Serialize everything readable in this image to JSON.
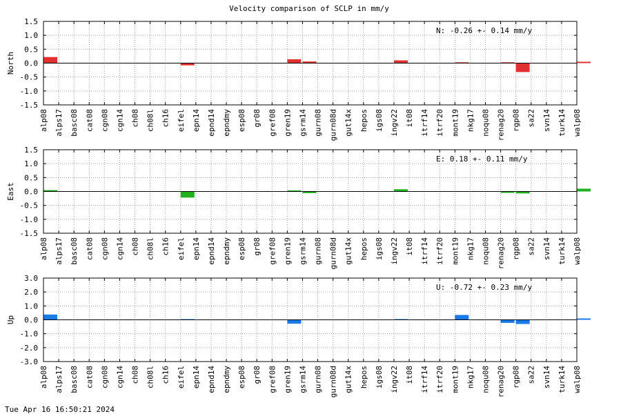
{
  "chart_data": [
    {
      "type": "bar",
      "title": "Velocity comparison of SCLP in mm/y",
      "ylabel": "North",
      "ylim": [
        -1.5,
        1.5
      ],
      "yticks": [
        "1.5",
        "1.0",
        "0.5",
        "0.0",
        "-0.5",
        "-1.0",
        "-1.5"
      ],
      "grid": true,
      "color": "#e03030",
      "annotation": "N:  -0.26 +-  0.14 mm/y",
      "categories": [
        "alp08",
        "alps17",
        "basc08",
        "cat08",
        "cgn08",
        "cgn14",
        "ch08",
        "ch08l",
        "ch16",
        "eifel",
        "epn14",
        "epnd14",
        "epndmy",
        "esp08",
        "gr08",
        "gref08",
        "gren19",
        "gsrm14",
        "gurn08",
        "gurn08d",
        "gut14x",
        "hepos",
        "igs08",
        "ingv22",
        "it08",
        "itrf14",
        "itrf20",
        "mont19",
        "nkg17",
        "noqu08",
        "renag20",
        "rgp08",
        "sa22",
        "svn14",
        "turk14",
        "walp08"
      ],
      "values": [
        0.22,
        0,
        0,
        0,
        0,
        0,
        0,
        0,
        0,
        -0.08,
        0,
        0,
        0,
        0,
        0,
        0,
        0.14,
        0.06,
        0,
        0,
        0,
        0,
        0,
        0.1,
        0,
        0,
        0,
        0.03,
        0,
        0,
        0.03,
        -0.32,
        0,
        0,
        0,
        0.05
      ]
    },
    {
      "type": "bar",
      "ylabel": "East",
      "ylim": [
        -1.5,
        1.5
      ],
      "yticks": [
        "1.5",
        "1.0",
        "0.5",
        "0.0",
        "-0.5",
        "-1.0",
        "-1.5"
      ],
      "grid": true,
      "color": "#20b020",
      "annotation": "E:   0.18 +-  0.11 mm/y",
      "categories": [
        "alp08",
        "alps17",
        "basc08",
        "cat08",
        "cgn08",
        "cgn14",
        "ch08",
        "ch08l",
        "ch16",
        "eifel",
        "epn14",
        "epnd14",
        "epndmy",
        "esp08",
        "gr08",
        "gref08",
        "gren19",
        "gsrm14",
        "gurn08",
        "gurn08d",
        "gut14x",
        "hepos",
        "igs08",
        "ingv22",
        "it08",
        "itrf14",
        "itrf20",
        "mont19",
        "nkg17",
        "noqu08",
        "renag20",
        "rgp08",
        "sa22",
        "svn14",
        "turk14",
        "walp08"
      ],
      "values": [
        0.05,
        0,
        0,
        0,
        0,
        0,
        0,
        0,
        0,
        -0.22,
        0,
        0,
        0,
        0,
        0,
        0,
        0.04,
        -0.06,
        0,
        0,
        0,
        0,
        0,
        0.08,
        0,
        0,
        0,
        0,
        0,
        0,
        -0.05,
        -0.07,
        0,
        0,
        0,
        0.1
      ]
    },
    {
      "type": "bar",
      "ylabel": "Up",
      "ylim": [
        -3.0,
        3.0
      ],
      "yticks": [
        "3.0",
        "2.0",
        "1.0",
        "0.0",
        "-1.0",
        "-2.0",
        "-3.0"
      ],
      "grid": true,
      "color": "#1a7ae8",
      "annotation": "U:  -0.72 +-  0.23 mm/y",
      "categories": [
        "alp08",
        "alps17",
        "basc08",
        "cat08",
        "cgn08",
        "cgn14",
        "ch08",
        "ch08l",
        "ch16",
        "eifel",
        "epn14",
        "epnd14",
        "epndmy",
        "esp08",
        "gr08",
        "gref08",
        "gren19",
        "gsrm14",
        "gurn08",
        "gurn08d",
        "gut14x",
        "hepos",
        "igs08",
        "ingv22",
        "it08",
        "itrf14",
        "itrf20",
        "mont19",
        "nkg17",
        "noqu08",
        "renag20",
        "rgp08",
        "sa22",
        "svn14",
        "turk14",
        "walp08"
      ],
      "values": [
        0.38,
        0,
        0,
        0,
        0,
        0,
        0,
        0,
        0,
        0.05,
        0,
        0,
        0,
        0,
        0,
        0,
        -0.28,
        0,
        0,
        0,
        0,
        0,
        0,
        0.05,
        0,
        0,
        0,
        0.35,
        0,
        0,
        -0.22,
        -0.3,
        0,
        0,
        0,
        0.1
      ]
    }
  ],
  "timestamp": "Tue Apr 16 16:50:21 2024"
}
